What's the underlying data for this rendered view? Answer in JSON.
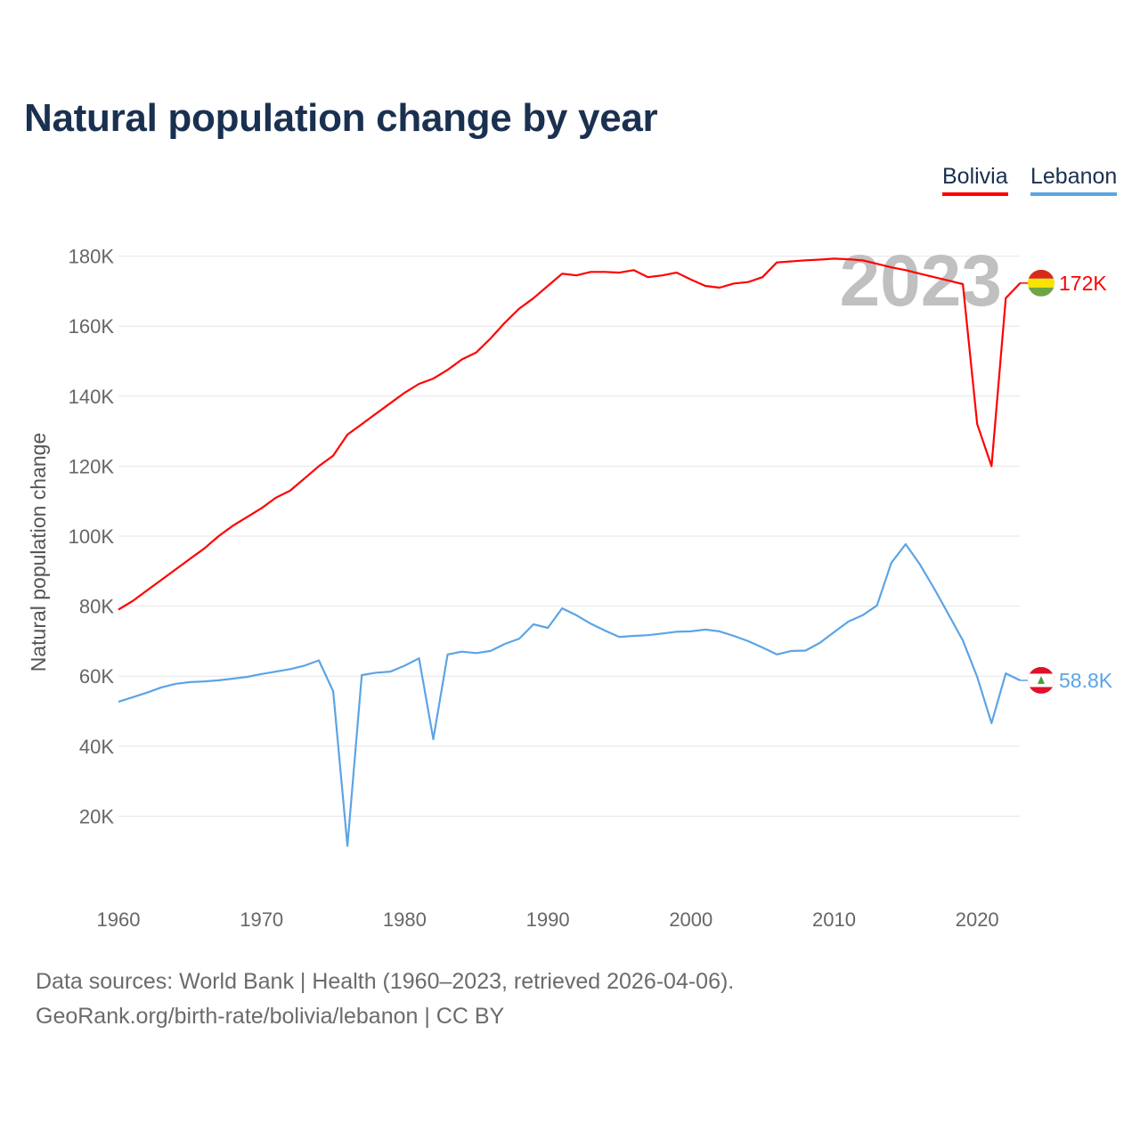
{
  "title": "Natural population change by year",
  "footer": {
    "line1": "Data sources: World Bank | Health (1960–2023, retrieved 2026-04-06).",
    "line2": "GeoRank.org/birth-rate/bolivia/lebanon | CC BY"
  },
  "chart_data": {
    "type": "line",
    "title": "Natural population change by year",
    "xlabel": "",
    "ylabel": "Natural population change",
    "xlim": [
      1960,
      2023
    ],
    "ylim": [
      0,
      190000
    ],
    "grid": true,
    "legend_position": "top-right",
    "year_watermark": "2023",
    "x_ticks": [
      1960,
      1970,
      1980,
      1990,
      2000,
      2010,
      2020
    ],
    "x_tick_labels": [
      "1960",
      "1970",
      "1980",
      "1990",
      "2000",
      "2010",
      "2020"
    ],
    "y_ticks": [
      20000,
      40000,
      60000,
      80000,
      100000,
      120000,
      140000,
      160000,
      180000
    ],
    "y_tick_labels": [
      "20K",
      "40K",
      "60K",
      "80K",
      "100K",
      "120K",
      "140K",
      "160K",
      "180K"
    ],
    "x_start": 1960,
    "series": [
      {
        "name": "Bolivia",
        "color": "#ff0000",
        "end_label": "172K",
        "flag_colors": [
          "#d52b1e",
          "#f9e300",
          "#6da544"
        ],
        "values": [
          79,
          81.5,
          84.5,
          87.5,
          90.5,
          93.5,
          96.5,
          100,
          103,
          105.5,
          108,
          111,
          113,
          116.5,
          120,
          123,
          129,
          132,
          135,
          138,
          141,
          143.5,
          145,
          147.5,
          150.5,
          152.5,
          156.5,
          161,
          165,
          168,
          171.5,
          175,
          174.5,
          175.5,
          175.5,
          175.3,
          176,
          174,
          174.5,
          175.3,
          173.3,
          171.5,
          171,
          172.2,
          172.6,
          174,
          178.2,
          178.5,
          178.8,
          179,
          179.3,
          179.1,
          178.8,
          177.8,
          176.8,
          176,
          175,
          174,
          173,
          172,
          132,
          120,
          168,
          172.3
        ]
      },
      {
        "name": "Lebanon",
        "color": "#5ba4e6",
        "end_label": "58.8K",
        "flag_colors": [
          "#e0102a",
          "#ffffff",
          "#4b9b3a"
        ],
        "values": [
          52.7,
          54,
          55.3,
          56.8,
          57.8,
          58.3,
          58.5,
          58.8,
          59.3,
          59.8,
          60.6,
          61.3,
          62,
          63,
          64.5,
          55.7,
          11.5,
          60.3,
          61,
          61.3,
          63,
          65.1,
          42,
          66.2,
          67,
          66.6,
          67.2,
          69.2,
          70.7,
          74.8,
          73.8,
          79.4,
          77.4,
          75,
          73,
          71.2,
          71.5,
          71.7,
          72.2,
          72.7,
          72.8,
          73.3,
          72.8,
          71.5,
          70,
          68.2,
          66.2,
          67.2,
          67.3,
          69.5,
          72.6,
          75.6,
          77.4,
          80.2,
          92.4,
          97.7,
          91.9,
          85,
          77.6,
          70.2,
          59.8,
          46.6,
          60.8,
          58.8
        ]
      }
    ],
    "value_unit": "thousands"
  }
}
